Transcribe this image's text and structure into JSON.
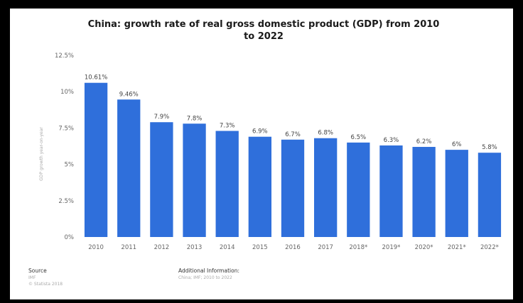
{
  "chart_data": {
    "type": "bar",
    "title_lines": [
      "China: growth rate of real gross domestic product (GDP) from 2010",
      "to 2022"
    ],
    "ylabel": "GDP growth year-on-year",
    "xlabel": "",
    "categories": [
      "2010",
      "2011",
      "2012",
      "2013",
      "2014",
      "2015",
      "2016",
      "2017",
      "2018*",
      "2019*",
      "2020*",
      "2021*",
      "2022*"
    ],
    "values": [
      10.61,
      9.46,
      7.9,
      7.8,
      7.3,
      6.9,
      6.7,
      6.8,
      6.5,
      6.3,
      6.2,
      6,
      5.8
    ],
    "value_labels": [
      "10.61%",
      "9.46%",
      "7.9%",
      "7.8%",
      "7.3%",
      "6.9%",
      "6.7%",
      "6.8%",
      "6.5%",
      "6.3%",
      "6.2%",
      "6%",
      "5.8%"
    ],
    "yticks": [
      0,
      2.5,
      5,
      7.5,
      10,
      12.5
    ],
    "ytick_labels": [
      "0%",
      "2.5%",
      "5%",
      "7.5%",
      "10%",
      "12.5%"
    ],
    "ylim": [
      0,
      12.5
    ],
    "bar_color": "#2f6fdb",
    "grid": false,
    "legend": "none"
  },
  "footer": {
    "source_heading": "Source",
    "source_lines": [
      "IMF",
      "© Statista 2018"
    ],
    "info_heading": "Additional Information:",
    "info_lines": [
      "China; IMF; 2010 to 2022"
    ]
  }
}
